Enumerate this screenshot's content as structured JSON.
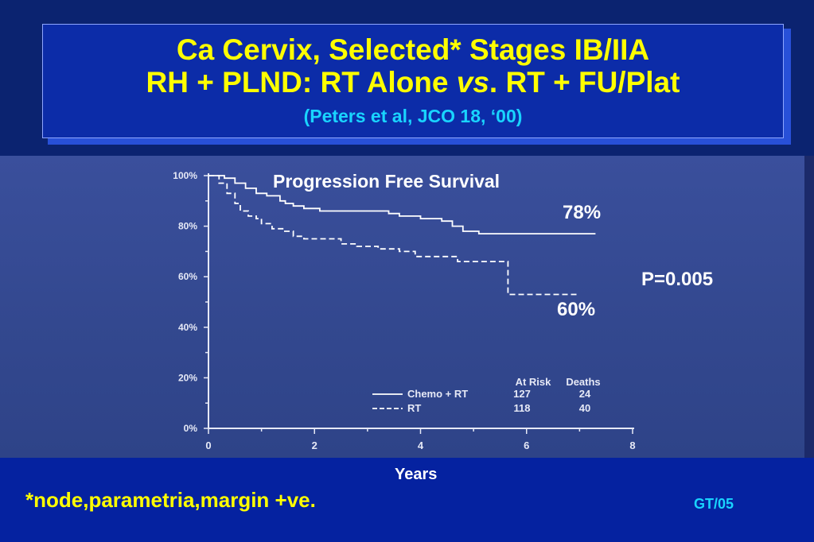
{
  "slide": {
    "title_line1": "Ca Cervix, Selected* Stages IB/IIA",
    "title_line2_a": "RH + PLND: RT Alone ",
    "title_line2_vs": "vs",
    "title_line2_b": ". RT + FU/Plat",
    "citation": "(Peters et al, JCO 18, ‘00)",
    "footnote": "*node,parametria,margin +ve.",
    "code": "GT/05",
    "annotation_78": "78%",
    "annotation_60": "60%",
    "p_value": "P=0.005"
  },
  "chart_data": {
    "type": "line",
    "title": "Progression Free Survival",
    "xlabel": "Years",
    "ylabel": "",
    "xlim": [
      0,
      8
    ],
    "ylim": [
      0,
      100
    ],
    "x_ticks": [
      "0",
      "2",
      "4",
      "6",
      "8"
    ],
    "y_ticks": [
      "0%",
      "20%",
      "40%",
      "60%",
      "80%",
      "100%"
    ],
    "legend_headers": [
      "At Risk",
      "Deaths"
    ],
    "series": [
      {
        "name": "Chemo + RT",
        "at_risk": "127",
        "deaths": "24",
        "style": "solid",
        "points": [
          [
            0,
            100
          ],
          [
            0.3,
            100
          ],
          [
            0.3,
            99
          ],
          [
            0.5,
            99
          ],
          [
            0.5,
            97
          ],
          [
            0.7,
            97
          ],
          [
            0.7,
            95
          ],
          [
            0.9,
            95
          ],
          [
            0.9,
            93
          ],
          [
            1.1,
            93
          ],
          [
            1.1,
            92
          ],
          [
            1.35,
            92
          ],
          [
            1.35,
            90
          ],
          [
            1.45,
            90
          ],
          [
            1.45,
            89
          ],
          [
            1.6,
            89
          ],
          [
            1.6,
            88
          ],
          [
            1.8,
            88
          ],
          [
            1.8,
            87
          ],
          [
            2.1,
            87
          ],
          [
            2.1,
            86
          ],
          [
            2.8,
            86
          ],
          [
            2.8,
            86
          ],
          [
            3.4,
            86
          ],
          [
            3.4,
            85
          ],
          [
            3.6,
            85
          ],
          [
            3.6,
            84
          ],
          [
            4.0,
            84
          ],
          [
            4.0,
            83
          ],
          [
            4.4,
            83
          ],
          [
            4.4,
            82
          ],
          [
            4.6,
            82
          ],
          [
            4.6,
            80
          ],
          [
            4.8,
            80
          ],
          [
            4.8,
            78
          ],
          [
            5.1,
            78
          ],
          [
            5.1,
            77
          ],
          [
            7.3,
            77
          ]
        ]
      },
      {
        "name": "RT",
        "at_risk": "118",
        "deaths": "40",
        "style": "dashed",
        "points": [
          [
            0,
            100
          ],
          [
            0.2,
            100
          ],
          [
            0.2,
            97
          ],
          [
            0.35,
            97
          ],
          [
            0.35,
            93
          ],
          [
            0.5,
            93
          ],
          [
            0.5,
            89
          ],
          [
            0.6,
            89
          ],
          [
            0.6,
            86
          ],
          [
            0.75,
            86
          ],
          [
            0.75,
            84
          ],
          [
            0.9,
            84
          ],
          [
            0.9,
            83
          ],
          [
            1.0,
            83
          ],
          [
            1.0,
            81
          ],
          [
            1.2,
            81
          ],
          [
            1.2,
            79
          ],
          [
            1.4,
            79
          ],
          [
            1.4,
            78
          ],
          [
            1.6,
            78
          ],
          [
            1.6,
            76
          ],
          [
            1.8,
            76
          ],
          [
            1.8,
            75
          ],
          [
            2.5,
            75
          ],
          [
            2.5,
            73
          ],
          [
            2.8,
            73
          ],
          [
            2.8,
            72
          ],
          [
            3.2,
            72
          ],
          [
            3.2,
            71
          ],
          [
            3.6,
            71
          ],
          [
            3.6,
            70
          ],
          [
            3.9,
            70
          ],
          [
            3.9,
            68
          ],
          [
            4.7,
            68
          ],
          [
            4.7,
            66
          ],
          [
            5.6,
            66
          ],
          [
            5.6,
            66
          ],
          [
            5.65,
            66
          ],
          [
            5.65,
            53
          ],
          [
            7.0,
            53
          ]
        ]
      }
    ],
    "grid": false
  },
  "colors": {
    "background": "#0a2a8c",
    "title_text": "#ffff00",
    "citation_text": "#19d4ff",
    "plot_background": "#3a4f9c",
    "curve": "#ffffff"
  }
}
